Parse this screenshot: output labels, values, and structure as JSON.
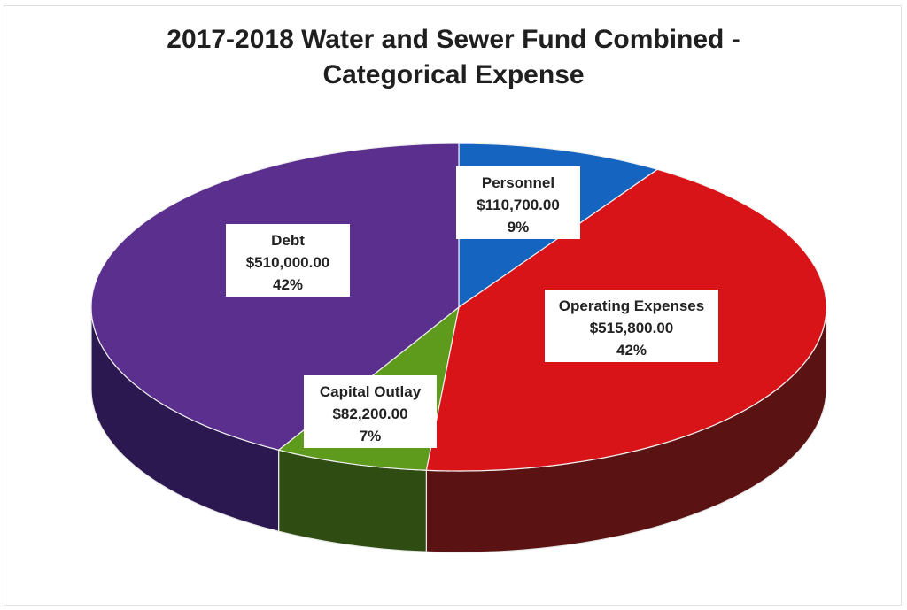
{
  "chart_data": {
    "type": "pie",
    "title": "2017-2018 Water and Sewer Fund Combined -",
    "subtitle": "Categorical Expense",
    "slices": [
      {
        "label": "Personnel",
        "value": 110700,
        "value_label": "$110,700.00",
        "percent_label": "9%",
        "color": "#1565c0",
        "side_color": "#0b3a6e"
      },
      {
        "label": "Operating Expenses",
        "value": 515800,
        "value_label": "$515,800.00",
        "percent_label": "42%",
        "color": "#d81418",
        "side_color": "#5a1212"
      },
      {
        "label": "Capital Outlay",
        "value": 82200,
        "value_label": "$82,200.00",
        "percent_label": "7%",
        "color": "#5e9a1c",
        "side_color": "#2f4d12"
      },
      {
        "label": "Debt",
        "value": 510000,
        "value_label": "$510,000.00",
        "percent_label": "42%",
        "color": "#5b2f8e",
        "side_color": "#2c1850"
      }
    ],
    "style": "3d-pie",
    "legend": "none"
  }
}
